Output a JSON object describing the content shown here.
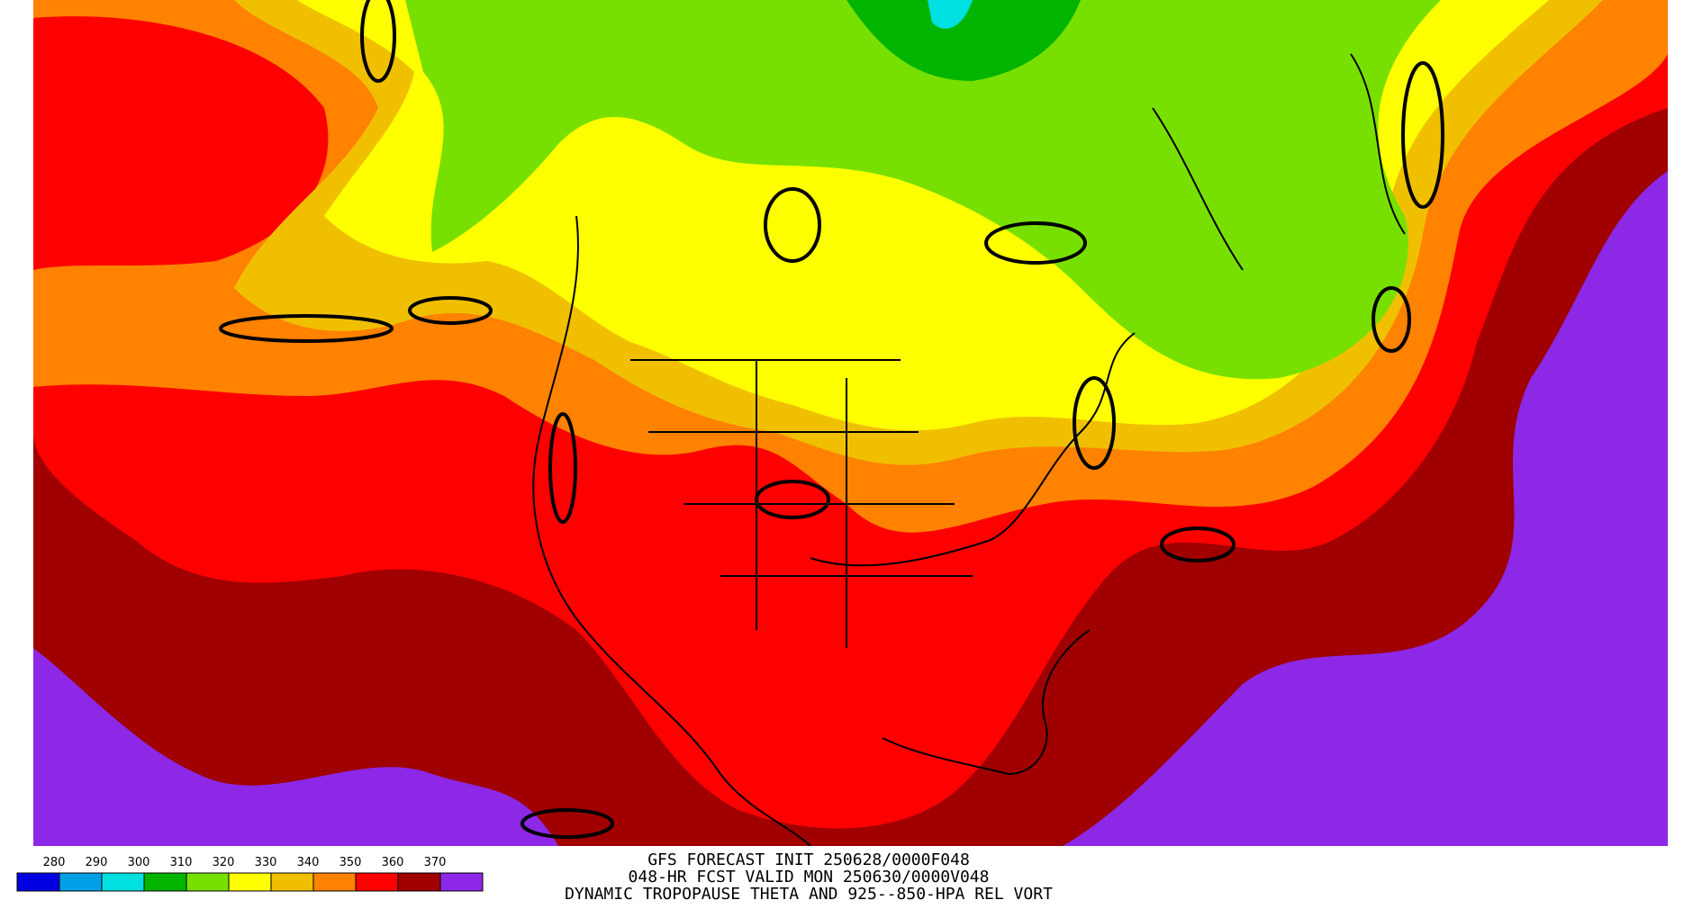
{
  "colorbar": {
    "ticks": [
      280,
      290,
      300,
      310,
      320,
      330,
      340,
      350,
      360,
      370
    ],
    "colors": [
      "#0000e0",
      "#00a0e6",
      "#00e0e0",
      "#00b400",
      "#78e000",
      "#ffff00",
      "#f0c000",
      "#ff8200",
      "#ff0000",
      "#a00000",
      "#8c28e6"
    ]
  },
  "caption": {
    "lines": [
      "GFS FORECAST INIT 250628/0000F048",
      "048-HR FCST VALID MON 250630/0000V048",
      "DYNAMIC TROPOPAUSE THETA AND 925--850-HPA REL VORT"
    ]
  }
}
